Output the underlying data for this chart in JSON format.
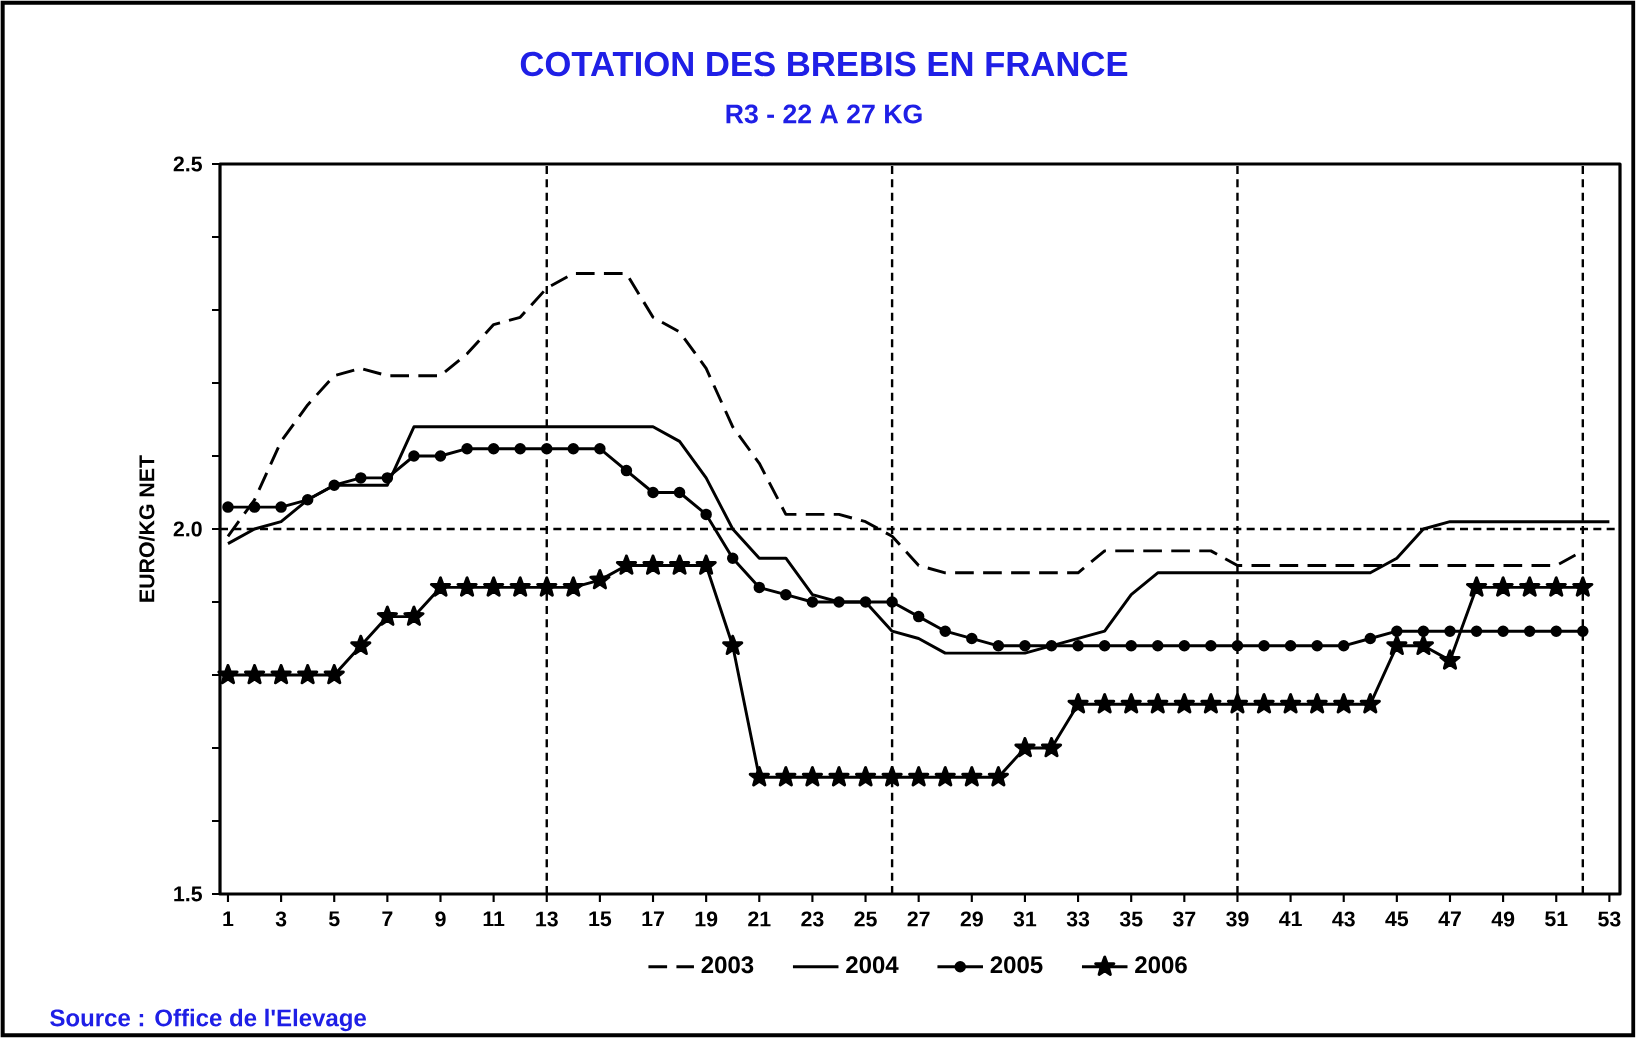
{
  "chart_data": {
    "type": "line",
    "title": "COTATION DES BREBIS EN FRANCE",
    "subtitle": "R3 - 22 A 27 KG",
    "ylabel": "EURO/KG NET",
    "annotations": [
      "Source : Office de l'Elevage"
    ],
    "x": [
      1,
      2,
      3,
      4,
      5,
      6,
      7,
      8,
      9,
      10,
      11,
      12,
      13,
      14,
      15,
      16,
      17,
      18,
      19,
      20,
      21,
      22,
      23,
      24,
      25,
      26,
      27,
      28,
      29,
      30,
      31,
      32,
      33,
      34,
      35,
      36,
      37,
      38,
      39,
      40,
      41,
      42,
      43,
      44,
      45,
      46,
      47,
      48,
      49,
      50,
      51,
      52
    ],
    "series": [
      {
        "name": "2003",
        "color": "#000000",
        "line_style": "dashed",
        "marker": "none",
        "values": [
          1.99,
          2.04,
          2.12,
          2.17,
          2.21,
          2.22,
          2.21,
          2.21,
          2.21,
          2.24,
          2.28,
          2.29,
          2.33,
          2.35,
          2.35,
          2.35,
          2.29,
          2.27,
          2.22,
          2.14,
          2.09,
          2.02,
          2.02,
          2.02,
          2.01,
          1.99,
          1.95,
          1.94,
          1.94,
          1.94,
          1.94,
          1.94,
          1.94,
          1.97,
          1.97,
          1.97,
          1.97,
          1.97,
          1.95,
          1.95,
          1.95,
          1.95,
          1.95,
          1.95,
          1.95,
          1.95,
          1.95,
          1.95,
          1.95,
          1.95,
          1.95,
          1.97
        ]
      },
      {
        "name": "2004",
        "color": "#000000",
        "line_style": "solid",
        "marker": "none",
        "x": [
          1,
          2,
          3,
          4,
          5,
          6,
          7,
          8,
          9,
          10,
          11,
          12,
          13,
          14,
          15,
          16,
          17,
          18,
          19,
          20,
          21,
          22,
          23,
          24,
          25,
          26,
          27,
          28,
          29,
          30,
          31,
          32,
          33,
          34,
          35,
          36,
          37,
          38,
          39,
          40,
          41,
          42,
          43,
          44,
          45,
          46,
          47,
          48,
          49,
          50,
          51,
          52,
          53
        ],
        "values": [
          1.98,
          2.0,
          2.01,
          2.04,
          2.06,
          2.06,
          2.06,
          2.14,
          2.14,
          2.14,
          2.14,
          2.14,
          2.14,
          2.14,
          2.14,
          2.14,
          2.14,
          2.12,
          2.07,
          2.0,
          1.96,
          1.96,
          1.91,
          1.9,
          1.9,
          1.86,
          1.85,
          1.83,
          1.83,
          1.83,
          1.83,
          1.84,
          1.85,
          1.86,
          1.91,
          1.94,
          1.94,
          1.94,
          1.94,
          1.94,
          1.94,
          1.94,
          1.94,
          1.94,
          1.96,
          2.0,
          2.01,
          2.01,
          2.01,
          2.01,
          2.01,
          2.01,
          2.01
        ]
      },
      {
        "name": "2005",
        "color": "#000000",
        "line_style": "solid",
        "marker": "circle",
        "values": [
          2.03,
          2.03,
          2.03,
          2.04,
          2.06,
          2.07,
          2.07,
          2.1,
          2.1,
          2.11,
          2.11,
          2.11,
          2.11,
          2.11,
          2.11,
          2.08,
          2.05,
          2.05,
          2.02,
          1.96,
          1.92,
          1.91,
          1.9,
          1.9,
          1.9,
          1.9,
          1.88,
          1.86,
          1.85,
          1.84,
          1.84,
          1.84,
          1.84,
          1.84,
          1.84,
          1.84,
          1.84,
          1.84,
          1.84,
          1.84,
          1.84,
          1.84,
          1.84,
          1.85,
          1.86,
          1.86,
          1.86,
          1.86,
          1.86,
          1.86,
          1.86,
          1.86
        ]
      },
      {
        "name": "2006",
        "color": "#000000",
        "line_style": "solid",
        "marker": "star",
        "values": [
          1.8,
          1.8,
          1.8,
          1.8,
          1.8,
          1.84,
          1.88,
          1.88,
          1.92,
          1.92,
          1.92,
          1.92,
          1.92,
          1.92,
          1.93,
          1.95,
          1.95,
          1.95,
          1.95,
          1.84,
          1.66,
          1.66,
          1.66,
          1.66,
          1.66,
          1.66,
          1.66,
          1.66,
          1.66,
          1.66,
          1.7,
          1.7,
          1.76,
          1.76,
          1.76,
          1.76,
          1.76,
          1.76,
          1.76,
          1.76,
          1.76,
          1.76,
          1.76,
          1.76,
          1.84,
          1.84,
          1.82,
          1.92,
          1.92,
          1.92,
          1.92,
          1.92
        ]
      }
    ],
    "xlim": [
      0.7,
      53.4
    ],
    "xticks": [
      1,
      3,
      5,
      7,
      9,
      11,
      13,
      15,
      17,
      19,
      21,
      23,
      25,
      27,
      29,
      31,
      33,
      35,
      37,
      39,
      41,
      43,
      45,
      47,
      49,
      51,
      53
    ],
    "ylim": [
      1.5,
      2.5
    ],
    "yticks": [
      1.5,
      {
        "value": 1.6,
        "label": null
      },
      {
        "value": 1.7,
        "label": null
      },
      {
        "value": 1.8,
        "label": null
      },
      {
        "value": 1.9,
        "label": null
      },
      {
        "value": 2,
        "label": "2.0"
      },
      {
        "value": 2.1,
        "label": null
      },
      {
        "value": 2.2,
        "label": null
      },
      {
        "value": 2.3,
        "label": null
      },
      {
        "value": 2.4,
        "label": null
      },
      2.5
    ],
    "ref_lines": [
      {
        "axis": "y",
        "value": 2.0,
        "line_style": "dashed"
      },
      {
        "axis": "x",
        "value": 13,
        "line_style": "dashed"
      },
      {
        "axis": "x",
        "value": 26,
        "line_style": "dashed"
      },
      {
        "axis": "x",
        "value": 39,
        "line_style": "dashed"
      },
      {
        "axis": "x",
        "value": 52,
        "line_style": "dashed"
      }
    ],
    "grid": false,
    "legend": "bottom"
  }
}
